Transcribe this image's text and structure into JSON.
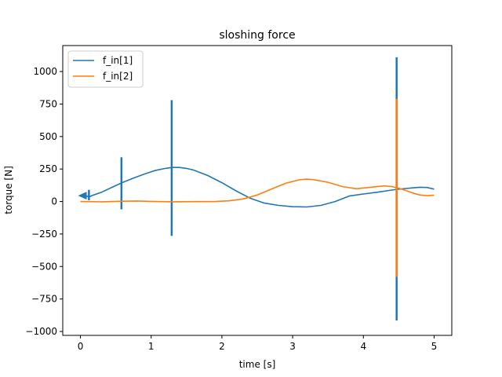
{
  "chart_data": {
    "type": "line",
    "title": "sloshing force",
    "xlabel": "time [s]",
    "ylabel": "torque [N]",
    "xlim": [
      -0.25,
      5.25
    ],
    "ylim": [
      -1030,
      1200
    ],
    "xticks": [
      0,
      1,
      2,
      3,
      4,
      5
    ],
    "yticks": [
      -1000,
      -750,
      -500,
      -250,
      0,
      250,
      500,
      750,
      1000
    ],
    "grid": false,
    "legend_position": "top-left",
    "series": [
      {
        "name": "f_in[1]",
        "color": "#1f77b4",
        "points": [
          [
            0,
            45
          ],
          [
            0.1,
            40
          ],
          [
            0.12,
            35
          ],
          [
            0.16,
            45
          ],
          [
            0.3,
            72
          ],
          [
            0.45,
            110
          ],
          [
            0.6,
            148
          ],
          [
            0.75,
            180
          ],
          [
            0.9,
            210
          ],
          [
            1.05,
            238
          ],
          [
            1.2,
            255
          ],
          [
            1.3,
            262
          ],
          [
            1.4,
            262
          ],
          [
            1.5,
            255
          ],
          [
            1.6,
            242
          ],
          [
            1.8,
            200
          ],
          [
            2.0,
            145
          ],
          [
            2.2,
            82
          ],
          [
            2.4,
            25
          ],
          [
            2.6,
            -12
          ],
          [
            2.8,
            -30
          ],
          [
            3.0,
            -40
          ],
          [
            3.2,
            -42
          ],
          [
            3.4,
            -30
          ],
          [
            3.6,
            0
          ],
          [
            3.8,
            42
          ],
          [
            4.0,
            58
          ],
          [
            4.2,
            72
          ],
          [
            4.4,
            88
          ],
          [
            4.5,
            95
          ],
          [
            4.6,
            100
          ],
          [
            4.7,
            105
          ],
          [
            4.8,
            110
          ],
          [
            4.9,
            108
          ],
          [
            5.0,
            95
          ]
        ],
        "spikes": [
          {
            "x": 0.12,
            "ymin": 10,
            "ymax": 90
          },
          {
            "x": 0.58,
            "ymin": -60,
            "ymax": 340
          },
          {
            "x": 1.29,
            "ymin": -265,
            "ymax": 780
          },
          {
            "x": 4.47,
            "ymin": -915,
            "ymax": 1110
          }
        ]
      },
      {
        "name": "f_in[2]",
        "color": "#ff7f0e",
        "points": [
          [
            0,
            0
          ],
          [
            0.3,
            -2
          ],
          [
            0.6,
            2
          ],
          [
            0.8,
            4
          ],
          [
            1.0,
            1
          ],
          [
            1.3,
            -2
          ],
          [
            1.6,
            -1
          ],
          [
            1.9,
            0
          ],
          [
            2.1,
            5
          ],
          [
            2.3,
            20
          ],
          [
            2.5,
            50
          ],
          [
            2.7,
            95
          ],
          [
            2.9,
            140
          ],
          [
            3.1,
            168
          ],
          [
            3.2,
            172
          ],
          [
            3.3,
            168
          ],
          [
            3.5,
            148
          ],
          [
            3.7,
            115
          ],
          [
            3.9,
            98
          ],
          [
            4.1,
            110
          ],
          [
            4.3,
            120
          ],
          [
            4.4,
            115
          ],
          [
            4.5,
            102
          ],
          [
            4.6,
            85
          ],
          [
            4.7,
            65
          ],
          [
            4.8,
            50
          ],
          [
            4.9,
            45
          ],
          [
            5.0,
            48
          ]
        ],
        "spikes": [
          {
            "x": 4.47,
            "ymin": -580,
            "ymax": 790
          }
        ]
      }
    ]
  }
}
